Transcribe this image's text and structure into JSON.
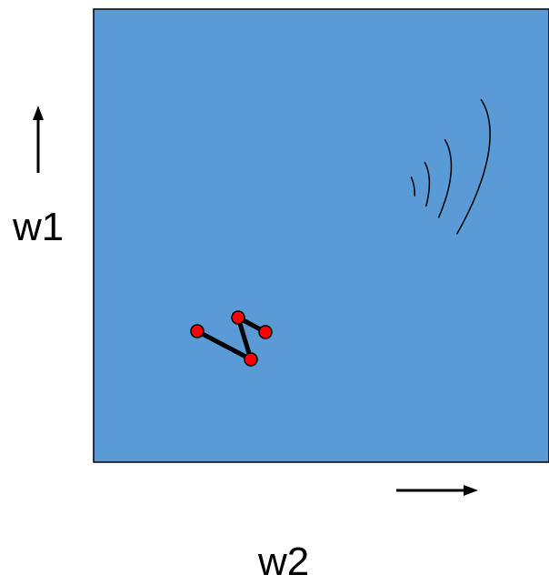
{
  "labels": {
    "vertical_axis": "w1",
    "horizontal_axis": "w2"
  },
  "colors": {
    "plot_background": "#5b9bd5",
    "contour_line": "#000000",
    "path_point": "#ff0000",
    "path_line": "#000000"
  },
  "icons": {
    "vertical": "up-arrow-icon",
    "horizontal": "right-arrow-icon"
  },
  "contour_levels": 5,
  "path_points": 4
}
